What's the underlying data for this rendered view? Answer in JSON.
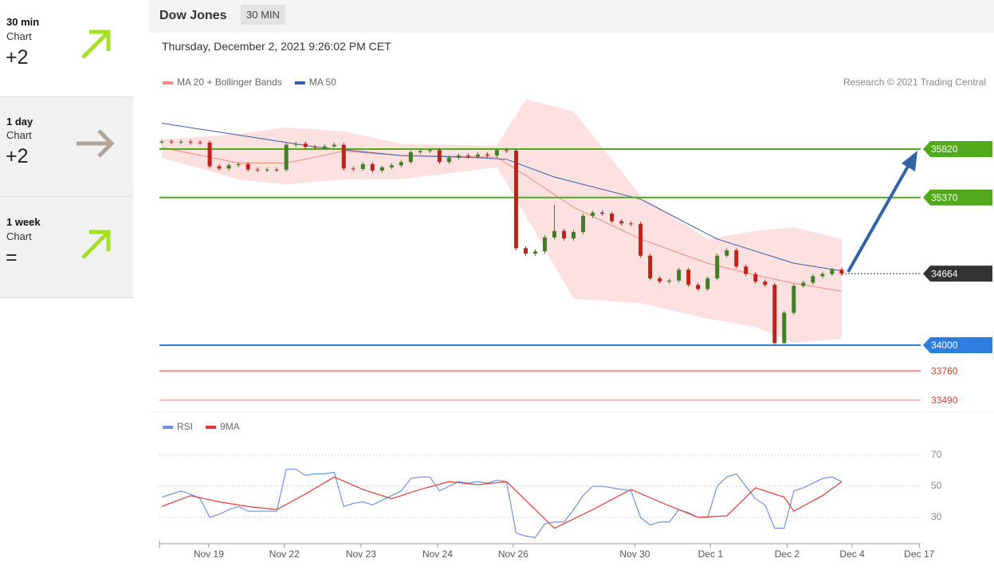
{
  "sidebar": [
    {
      "period": "30 min",
      "label": "Chart",
      "signal": "+2"
    },
    {
      "period": "1 day",
      "label": "Chart",
      "signal": "+2"
    },
    {
      "period": "1 week",
      "label": "Chart",
      "signal": "="
    }
  ],
  "header": {
    "title": "Dow Jones",
    "interval": "30 MIN",
    "timestamp": "Thursday, December 2, 2021 9:26:02 PM CET"
  },
  "credit": "Research © 2021 Trading Central",
  "chart_data": [
    {
      "type": "candlestick",
      "open": [
        35880,
        35890,
        35885,
        35888,
        35882,
        35880,
        35660,
        35640,
        35670,
        35680,
        35630,
        35625,
        35630,
        35628,
        35860,
        35870,
        35840,
        35835,
        35845,
        35860,
        35640,
        35635,
        35680,
        35620,
        35650,
        35670,
        35700,
        35790,
        35800,
        35810,
        35700,
        35740,
        35760,
        35750,
        35770,
        35760,
        35810,
        35805,
        34900,
        34850,
        34870,
        35000,
        35060,
        34990,
        35050,
        35200,
        35230,
        35220,
        35150,
        35130,
        35125,
        34830,
        34620,
        34590,
        34600,
        34700,
        34560,
        34520,
        34620,
        34830,
        34880,
        34730,
        34660,
        34590,
        34560,
        34020,
        34300,
        34550,
        34580,
        34640,
        34660,
        34700
      ],
      "high": [
        35910,
        35910,
        35908,
        35908,
        35902,
        35900,
        35680,
        35690,
        35700,
        35700,
        35650,
        35650,
        35650,
        35880,
        35890,
        35890,
        35860,
        35865,
        35880,
        35880,
        35660,
        35700,
        35700,
        35670,
        35690,
        35720,
        35810,
        35820,
        35830,
        35830,
        35760,
        35780,
        35780,
        35790,
        35790,
        35830,
        35830,
        35825,
        34920,
        34890,
        35020,
        35300,
        35080,
        35070,
        35220,
        35250,
        35250,
        35240,
        35170,
        35150,
        35145,
        34850,
        34640,
        34620,
        34720,
        34720,
        34580,
        34640,
        34850,
        34900,
        34900,
        34750,
        34680,
        34610,
        34580,
        34320,
        34570,
        34600,
        34660,
        34680,
        34720,
        34720
      ],
      "low": [
        35860,
        35865,
        35865,
        35862,
        35860,
        35640,
        35620,
        35620,
        35650,
        35610,
        35605,
        35605,
        35608,
        35608,
        35840,
        35820,
        35815,
        35815,
        35825,
        35620,
        35615,
        35615,
        35600,
        35600,
        35630,
        35650,
        35680,
        35770,
        35780,
        35680,
        35680,
        35720,
        35730,
        35730,
        35740,
        35740,
        35785,
        34880,
        34830,
        34830,
        34850,
        34980,
        34970,
        34970,
        35030,
        35180,
        35200,
        35130,
        35110,
        35105,
        34810,
        34600,
        34570,
        34570,
        34580,
        34540,
        34500,
        34500,
        34600,
        34810,
        34710,
        34640,
        34570,
        34540,
        34000,
        34000,
        34280,
        34530,
        34560,
        34620,
        34640,
        34644
      ],
      "close": [
        35890,
        35885,
        35888,
        35882,
        35880,
        35660,
        35640,
        35670,
        35680,
        35630,
        35625,
        35630,
        35628,
        35860,
        35870,
        35840,
        35835,
        35845,
        35860,
        35640,
        35635,
        35680,
        35620,
        35650,
        35670,
        35700,
        35790,
        35800,
        35810,
        35700,
        35740,
        35760,
        35750,
        35770,
        35760,
        35810,
        35805,
        34900,
        34850,
        34870,
        35000,
        35060,
        34990,
        35050,
        35200,
        35230,
        35220,
        35150,
        35130,
        35125,
        34830,
        34620,
        34590,
        34600,
        34700,
        34560,
        34520,
        34620,
        34830,
        34880,
        34730,
        34660,
        34590,
        34560,
        34020,
        34300,
        34550,
        34580,
        34640,
        34660,
        34700,
        34664
      ],
      "up_color": "#3f7f25",
      "down_color": "#c3201c",
      "series": [
        {
          "name": "MA 20 + Bollinger Bands",
          "color": "#f28b82",
          "band_color": "#fde1e1",
          "x": [
            0,
            8,
            13,
            19,
            25,
            35,
            38,
            43,
            50,
            57,
            62,
            66,
            71
          ],
          "values": [
            35835,
            35690,
            35690,
            35800,
            35760,
            35745,
            35575,
            35280,
            34985,
            34760,
            34650,
            34575,
            34500
          ],
          "upper": [
            35910,
            35960,
            36020,
            35985,
            35870,
            35850,
            36280,
            36170,
            35390,
            34985,
            35060,
            35095,
            34985
          ],
          "lower": [
            35740,
            35540,
            35490,
            35540,
            35540,
            35650,
            35205,
            34430,
            34390,
            34245,
            34170,
            34020,
            34060
          ]
        },
        {
          "name": "MA 50",
          "color": "#3a5ea8",
          "x": [
            0,
            8,
            16,
            25,
            33,
            36,
            41,
            50,
            58,
            66,
            71
          ],
          "values": [
            36060,
            35950,
            35840,
            35760,
            35740,
            35725,
            35560,
            35355,
            34985,
            34760,
            34690
          ]
        }
      ],
      "levels": [
        {
          "value": 35820,
          "color": "#52a91c",
          "style": "solid",
          "tag": true
        },
        {
          "value": 35370,
          "color": "#52a91c",
          "style": "solid",
          "tag": true
        },
        {
          "value": 34664,
          "color": "#333333",
          "style": "dotted",
          "tag": true
        },
        {
          "value": 34000,
          "color": "#2f7de1",
          "style": "solid",
          "tag": true
        },
        {
          "value": 33760,
          "color": "#f08a8a",
          "style": "solid",
          "tag": false
        },
        {
          "value": 33490,
          "color": "#f7bcbc",
          "style": "solid",
          "tag": false
        }
      ],
      "xlim": [
        -0.25,
        79.25
      ],
      "ylim": [
        33390,
        36320
      ]
    },
    {
      "type": "line",
      "series": [
        {
          "name": "RSI",
          "color": "#6f93e6",
          "values": [
            43,
            45,
            47,
            45,
            42,
            30,
            32,
            35,
            37,
            34,
            34,
            34,
            34,
            61,
            61,
            57,
            58,
            58,
            59,
            37,
            39,
            40,
            38,
            41,
            44,
            47,
            55,
            56,
            56,
            47,
            50,
            53,
            52,
            53,
            52,
            54,
            53,
            20,
            18,
            17,
            26,
            27,
            27,
            35,
            44,
            50,
            50,
            49,
            48,
            47,
            30,
            25,
            27,
            27,
            35,
            33,
            30,
            30,
            50,
            56,
            58,
            50,
            42,
            38,
            23,
            23,
            47,
            49,
            52,
            55,
            56,
            53
          ]
        },
        {
          "name": "9MA",
          "color": "#e53935",
          "x": [
            0,
            3,
            6,
            9,
            12,
            15,
            18,
            21,
            24,
            27,
            30,
            33,
            36,
            39,
            41,
            45,
            49,
            52,
            56,
            59,
            62,
            65,
            66,
            69,
            71
          ],
          "values": [
            37,
            44,
            40,
            37,
            35,
            45,
            56,
            48,
            42,
            48,
            53,
            51,
            53,
            35,
            23,
            35,
            48,
            40,
            30,
            31,
            49,
            43,
            34,
            44,
            53
          ]
        }
      ],
      "xlim": [
        -0.25,
        79.25
      ],
      "ylim": [
        15,
        81
      ],
      "yticks": [
        30,
        50,
        70
      ],
      "xticks": [
        {
          "value": 4.9,
          "label": "Nov 19"
        },
        {
          "value": 12.8,
          "label": "Nov 22"
        },
        {
          "value": 20.8,
          "label": "Nov 23"
        },
        {
          "value": 28.8,
          "label": "Nov 24"
        },
        {
          "value": 36.7,
          "label": "Nov 26"
        },
        {
          "value": 49.4,
          "label": "Nov 30"
        },
        {
          "value": 57.3,
          "label": "Dec 1"
        },
        {
          "value": 65.3,
          "label": "Dec 2"
        },
        {
          "value": 72.1,
          "label": "Dec 4"
        },
        {
          "value": 79.1,
          "label": "Dec 17"
        }
      ]
    }
  ]
}
